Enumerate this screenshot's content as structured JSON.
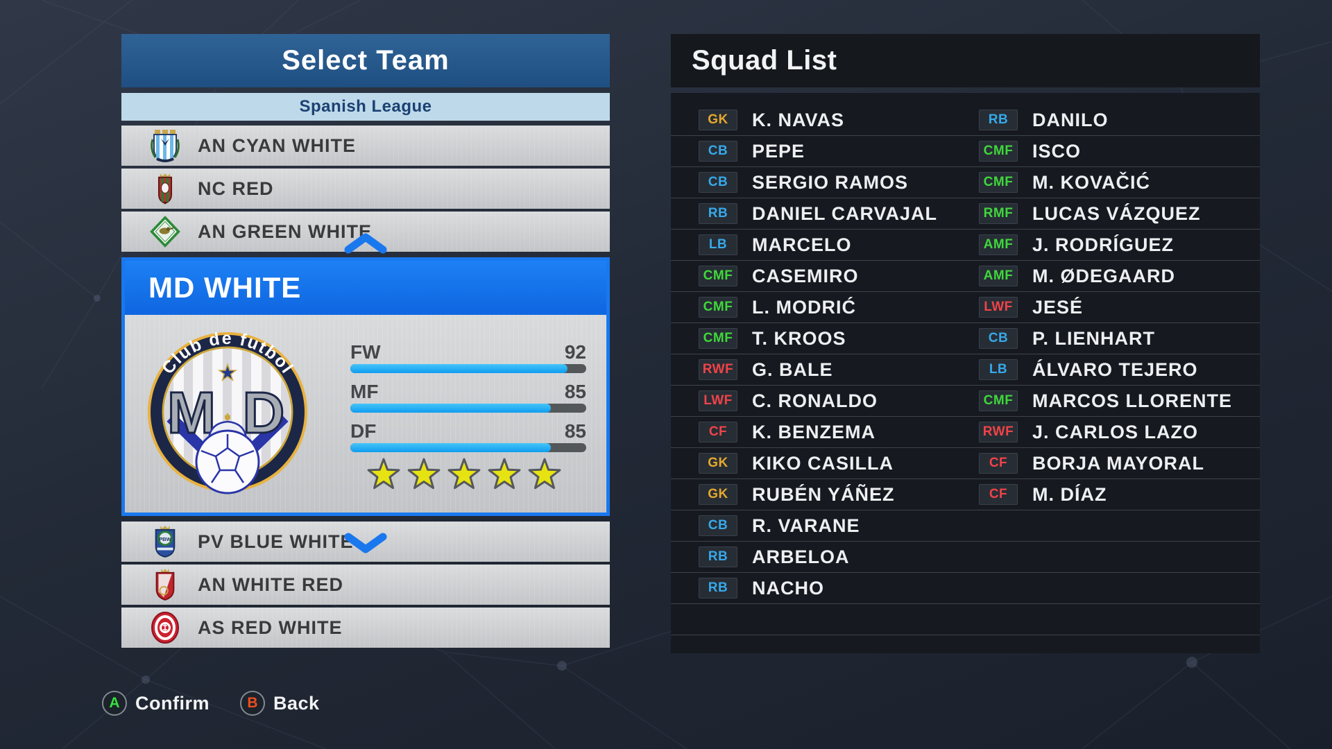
{
  "colors": {
    "accent": "#1a78ee",
    "header_blue": "#275a8e",
    "league_band": "#bed9e9",
    "league_text": "#1c4173",
    "bar_cyan": "#1aa7f2",
    "bar_track": "#53575a",
    "star_yellow": "#e7e312",
    "squad_header_bg": "#15181c"
  },
  "select_team": {
    "title": "Select Team",
    "league": "Spanish League",
    "teams_above": [
      {
        "name": "AN CYAN WHITE",
        "crest": "cyan_stripes_shield"
      },
      {
        "name": "NC RED",
        "crest": "red_green_crest"
      },
      {
        "name": "AN GREEN WHITE",
        "crest": "green_diamond"
      }
    ],
    "selected": {
      "name": "MD WHITE",
      "crest_arc_text": "Club de futbol",
      "crest_initials": [
        "M",
        "D"
      ],
      "stats": [
        {
          "label": "FW",
          "value": 92
        },
        {
          "label": "MF",
          "value": 85
        },
        {
          "label": "DF",
          "value": 85
        }
      ],
      "stars": 5
    },
    "teams_below": [
      {
        "name": "PV BLUE WHITE",
        "crest": "blue_crown_crest"
      },
      {
        "name": "AN WHITE RED",
        "crest": "red_white_crown_shield"
      },
      {
        "name": "AS RED WHITE",
        "crest": "red_oval"
      }
    ]
  },
  "squad_list": {
    "title": "Squad List",
    "position_colors": {
      "gk": "#e5a82d",
      "df": "#36a9ea",
      "mf": "#3fd73b",
      "fw": "#f04348"
    },
    "left": [
      {
        "pos": "GK",
        "group": "gk",
        "name": "K. NAVAS"
      },
      {
        "pos": "CB",
        "group": "df",
        "name": "PEPE"
      },
      {
        "pos": "CB",
        "group": "df",
        "name": "SERGIO RAMOS"
      },
      {
        "pos": "RB",
        "group": "df",
        "name": "DANIEL CARVAJAL"
      },
      {
        "pos": "LB",
        "group": "df",
        "name": "MARCELO"
      },
      {
        "pos": "CMF",
        "group": "mf",
        "name": "CASEMIRO"
      },
      {
        "pos": "CMF",
        "group": "mf",
        "name": "L. MODRIĆ"
      },
      {
        "pos": "CMF",
        "group": "mf",
        "name": "T. KROOS"
      },
      {
        "pos": "RWF",
        "group": "fw",
        "name": "G. BALE"
      },
      {
        "pos": "LWF",
        "group": "fw",
        "name": "C. RONALDO"
      },
      {
        "pos": "CF",
        "group": "fw",
        "name": "K. BENZEMA"
      },
      {
        "pos": "GK",
        "group": "gk",
        "name": "KIKO CASILLA"
      },
      {
        "pos": "GK",
        "group": "gk",
        "name": "RUBÉN YÁÑEZ"
      },
      {
        "pos": "CB",
        "group": "df",
        "name": "R. VARANE"
      },
      {
        "pos": "RB",
        "group": "df",
        "name": "ARBELOA"
      },
      {
        "pos": "RB",
        "group": "df",
        "name": "NACHO"
      }
    ],
    "right": [
      {
        "pos": "RB",
        "group": "df",
        "name": "DANILO"
      },
      {
        "pos": "CMF",
        "group": "mf",
        "name": "ISCO"
      },
      {
        "pos": "CMF",
        "group": "mf",
        "name": "M. KOVAČIĆ"
      },
      {
        "pos": "RMF",
        "group": "mf",
        "name": "LUCAS VÁZQUEZ"
      },
      {
        "pos": "AMF",
        "group": "mf",
        "name": "J. RODRÍGUEZ"
      },
      {
        "pos": "AMF",
        "group": "mf",
        "name": "M. ØDEGAARD"
      },
      {
        "pos": "LWF",
        "group": "fw",
        "name": "JESÉ"
      },
      {
        "pos": "CB",
        "group": "df",
        "name": "P. LIENHART"
      },
      {
        "pos": "LB",
        "group": "df",
        "name": "ÁLVARO TEJERO"
      },
      {
        "pos": "CMF",
        "group": "mf",
        "name": "MARCOS LLORENTE"
      },
      {
        "pos": "RWF",
        "group": "fw",
        "name": "J. CARLOS LAZO"
      },
      {
        "pos": "CF",
        "group": "fw",
        "name": "BORJA MAYORAL"
      },
      {
        "pos": "CF",
        "group": "fw",
        "name": "M. DÍAZ"
      }
    ]
  },
  "controls": [
    {
      "key": "A",
      "label": "Confirm",
      "key_color": "#35e13e"
    },
    {
      "key": "B",
      "label": "Back",
      "key_color": "#ee4d1e"
    }
  ]
}
